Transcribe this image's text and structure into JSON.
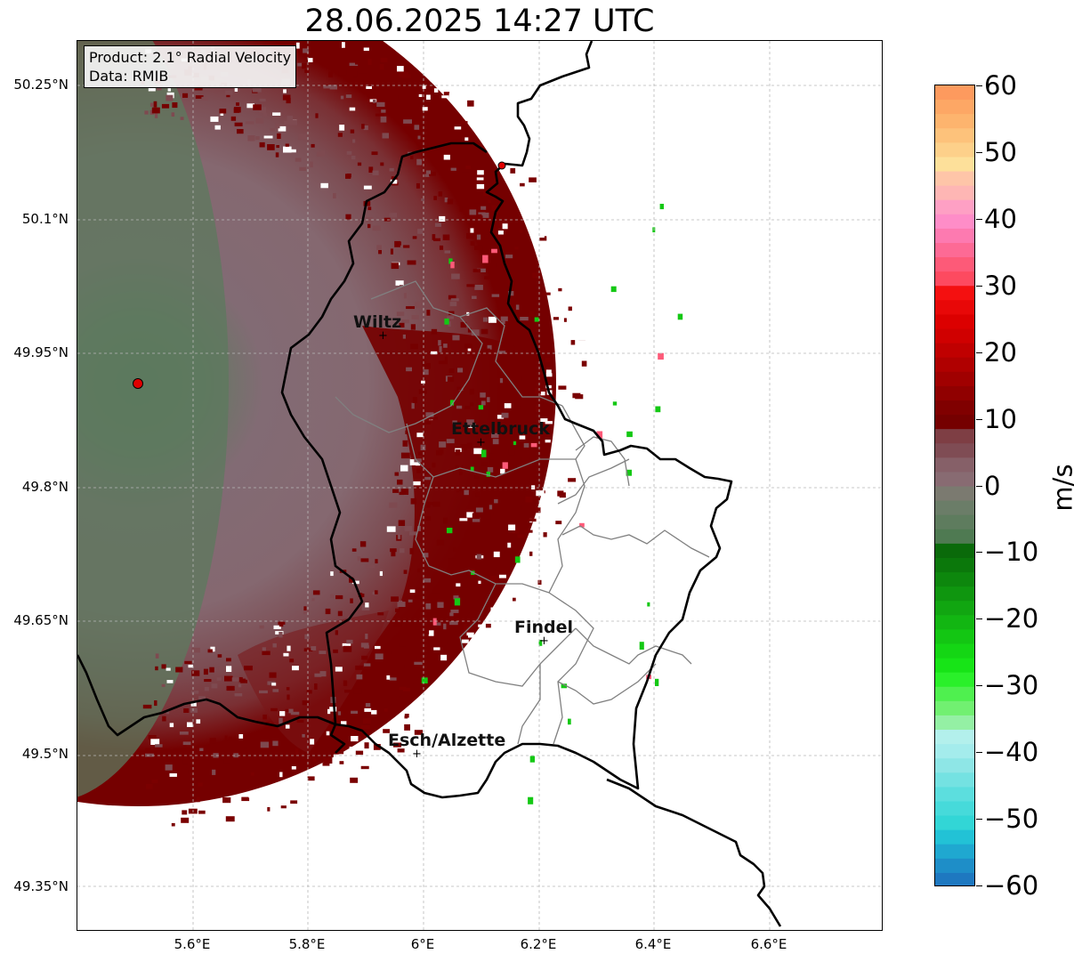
{
  "title": "28.06.2025 14:27 UTC",
  "info": {
    "product": "Product: 2.1° Radial Velocity",
    "data_source": "Data: RMIB"
  },
  "latitude_labels": [
    "50.25°N",
    "50.1°N",
    "49.95°N",
    "49.8°N",
    "49.65°N",
    "49.5°N",
    "49.35°N"
  ],
  "longitude_labels": [
    "5.6°E",
    "5.8°E",
    "6°E",
    "6.2°E",
    "6.4°E",
    "6.6°E"
  ],
  "cities": [
    {
      "name": "Wiltz"
    },
    {
      "name": "Ettelbruck"
    },
    {
      "name": "Findel"
    },
    {
      "name": "Esch/Alzette"
    }
  ],
  "colorbar": {
    "unit": "m/s",
    "tick_labels": [
      "60",
      "50",
      "40",
      "30",
      "20",
      "10",
      "0",
      "−10",
      "−20",
      "−30",
      "−40",
      "−50",
      "−60"
    ],
    "range": [
      -60,
      60
    ]
  },
  "colors": {
    "far_receding": "#7a0000",
    "mid_receding": "#7e4a50",
    "near_zero": "#866b75",
    "approaching_weak": "#5a7b5c",
    "border": "#000000",
    "canton_border": "#808080"
  }
}
